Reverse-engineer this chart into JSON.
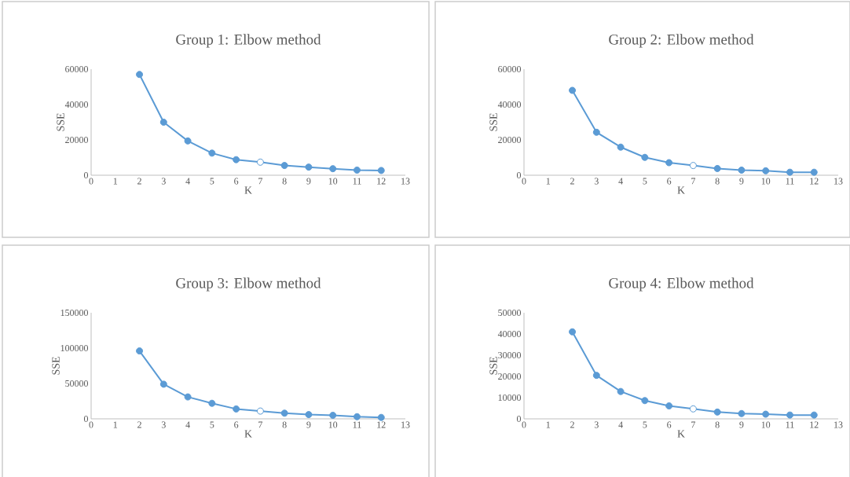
{
  "chart_data": [
    {
      "type": "line",
      "title": "Group 1: Elbow method",
      "xlabel": "K",
      "ylabel": "SSE",
      "marker": "circle",
      "x": [
        2,
        3,
        4,
        5,
        6,
        7,
        8,
        9,
        10,
        11,
        12
      ],
      "series": [
        {
          "color": "#5b9bd5",
          "values": [
            57000,
            30000,
            19400,
            12500,
            8800,
            7400,
            5500,
            4600,
            3700,
            2900,
            2700
          ],
          "colors": [
            "#5b9bd5",
            "#5b9bd5",
            "#5b9bd5",
            "#5b9bd5",
            "#5b9bd5",
            "#ffffff",
            "#5b9bd5",
            "#5b9bd5",
            "#5b9bd5",
            "#5b9bd5",
            "#5b9bd5"
          ]
        }
      ],
      "xlim": [
        0,
        13
      ],
      "xticks": [
        0,
        1,
        2,
        3,
        4,
        5,
        6,
        7,
        8,
        9,
        10,
        11,
        12,
        13
      ],
      "ylim": [
        0,
        60000
      ],
      "yticks": [
        0,
        20000,
        40000,
        60000
      ]
    },
    {
      "type": "line",
      "title": "Group 2: Elbow method",
      "xlabel": "K",
      "ylabel": "SSE",
      "marker": "circle",
      "x": [
        2,
        3,
        4,
        5,
        6,
        7,
        8,
        9,
        10,
        11,
        12
      ],
      "series": [
        {
          "color": "#5b9bd5",
          "values": [
            48000,
            24300,
            15900,
            10100,
            7100,
            5500,
            3800,
            2900,
            2500,
            1700,
            1700
          ],
          "colors": [
            "#5b9bd5",
            "#5b9bd5",
            "#5b9bd5",
            "#5b9bd5",
            "#5b9bd5",
            "#ffffff",
            "#5b9bd5",
            "#5b9bd5",
            "#5b9bd5",
            "#5b9bd5",
            "#5b9bd5"
          ]
        }
      ],
      "xlim": [
        0,
        13
      ],
      "xticks": [
        0,
        1,
        2,
        3,
        4,
        5,
        6,
        7,
        8,
        9,
        10,
        11,
        12,
        13
      ],
      "ylim": [
        0,
        60000
      ],
      "yticks": [
        0,
        20000,
        40000,
        60000
      ]
    },
    {
      "type": "line",
      "title": "Group 3: Elbow method",
      "xlabel": "K",
      "ylabel": "SSE",
      "marker": "circle",
      "x": [
        2,
        3,
        4,
        5,
        6,
        7,
        8,
        9,
        10,
        11,
        12
      ],
      "series": [
        {
          "color": "#5b9bd5",
          "values": [
            96000,
            49000,
            31000,
            22000,
            14000,
            11000,
            8000,
            6000,
            5000,
            3000,
            2000
          ],
          "colors": [
            "#5b9bd5",
            "#5b9bd5",
            "#5b9bd5",
            "#5b9bd5",
            "#5b9bd5",
            "#ffffff",
            "#5b9bd5",
            "#5b9bd5",
            "#5b9bd5",
            "#5b9bd5",
            "#5b9bd5"
          ]
        }
      ],
      "xlim": [
        0,
        13
      ],
      "xticks": [
        0,
        1,
        2,
        3,
        4,
        5,
        6,
        7,
        8,
        9,
        10,
        11,
        12,
        13
      ],
      "ylim": [
        0,
        150000
      ],
      "yticks": [
        0,
        50000,
        100000,
        150000
      ]
    },
    {
      "type": "line",
      "title": "Group 4: Elbow method",
      "xlabel": "K",
      "ylabel": "SSE",
      "marker": "circle",
      "x": [
        2,
        3,
        4,
        5,
        6,
        7,
        8,
        9,
        10,
        11,
        12
      ],
      "series": [
        {
          "color": "#5b9bd5",
          "values": [
            41000,
            20500,
            12900,
            8600,
            6100,
            4700,
            3200,
            2500,
            2200,
            1800,
            1800
          ],
          "colors": [
            "#5b9bd5",
            "#5b9bd5",
            "#5b9bd5",
            "#5b9bd5",
            "#5b9bd5",
            "#ffffff",
            "#5b9bd5",
            "#5b9bd5",
            "#5b9bd5",
            "#5b9bd5",
            "#5b9bd5"
          ]
        }
      ],
      "xlim": [
        0,
        13
      ],
      "xticks": [
        0,
        1,
        2,
        3,
        4,
        5,
        6,
        7,
        8,
        9,
        10,
        11,
        12,
        13
      ],
      "ylim": [
        0,
        50000
      ],
      "yticks": [
        0,
        10000,
        20000,
        30000,
        40000,
        50000
      ]
    }
  ]
}
